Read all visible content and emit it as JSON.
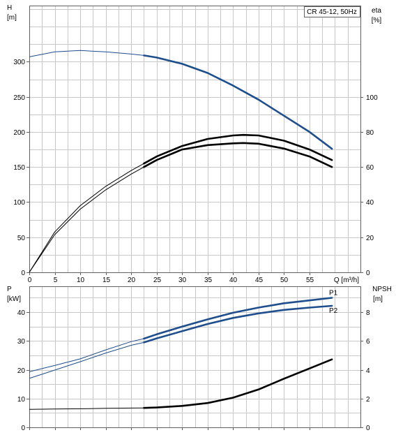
{
  "chart_data": [
    {
      "type": "line",
      "legend_box": "CR 45-12, 50Hz",
      "y_left": {
        "label_name": "H",
        "label_unit": "[m]",
        "lim": [
          0,
          380
        ],
        "ticks": [
          0,
          50,
          100,
          150,
          200,
          250,
          300
        ]
      },
      "y_right": {
        "label_name": "eta",
        "label_unit": "[%]",
        "lim": [
          0,
          152
        ],
        "ticks": [
          0,
          20,
          40,
          60,
          80,
          100
        ]
      },
      "x": {
        "label": "Q [m³/h]",
        "lim": [
          0,
          65
        ],
        "ticks": [
          0,
          5,
          10,
          15,
          20,
          25,
          30,
          35,
          40,
          45,
          50,
          55
        ]
      },
      "grid": true,
      "series": [
        {
          "axis": "left",
          "color": "#1f4e8c",
          "x": [
            0,
            5,
            10,
            15,
            20,
            22.5,
            25,
            30,
            35,
            40,
            45,
            50,
            55,
            59.4
          ],
          "y": [
            307,
            314,
            316,
            314,
            311,
            309,
            306,
            297,
            284,
            266,
            246,
            223,
            200,
            176
          ]
        },
        {
          "axis": "right",
          "color": "#000000",
          "x": [
            0,
            5,
            10,
            15,
            20,
            22.5,
            25,
            30,
            35,
            40,
            42,
            45,
            50,
            55,
            59.4
          ],
          "y": [
            0,
            23,
            38,
            49,
            58,
            62,
            66,
            72,
            76,
            78,
            78.3,
            78,
            75,
            70,
            64
          ]
        },
        {
          "axis": "right",
          "color": "#000000",
          "x": [
            0,
            5,
            10,
            15,
            20,
            22.5,
            25,
            30,
            35,
            40,
            42,
            45,
            50,
            55,
            59.4
          ],
          "y": [
            0,
            21.5,
            36,
            47,
            56,
            60,
            64,
            70,
            72.5,
            73.5,
            73.7,
            73.3,
            70.5,
            66,
            60
          ]
        }
      ]
    },
    {
      "type": "line",
      "y_left": {
        "label_name": "P",
        "label_unit": "[kW]",
        "lim": [
          0,
          49
        ],
        "ticks": [
          0,
          10,
          20,
          30,
          40
        ]
      },
      "y_right": {
        "label_name": "NPSH",
        "label_unit": "[m]",
        "lim": [
          0,
          9.8
        ],
        "ticks": [
          0,
          2,
          4,
          6,
          8
        ]
      },
      "x": {
        "lim": [
          0,
          65
        ]
      },
      "grid": true,
      "series": [
        {
          "name": "P1",
          "axis": "left",
          "color": "#1f4e8c",
          "x": [
            0,
            5,
            10,
            15,
            20,
            22.5,
            25,
            30,
            35,
            40,
            45,
            50,
            55,
            59.4
          ],
          "y": [
            19.3,
            21.5,
            23.8,
            26.9,
            29.8,
            30.8,
            32.3,
            35.0,
            37.5,
            39.8,
            41.6,
            43.1,
            44.1,
            45.0
          ]
        },
        {
          "name": "P2",
          "axis": "left",
          "color": "#1f4e8c",
          "x": [
            0,
            5,
            10,
            15,
            20,
            22.5,
            25,
            30,
            35,
            40,
            45,
            50,
            55,
            59.4
          ],
          "y": [
            17.0,
            19.9,
            22.8,
            25.8,
            28.5,
            29.5,
            30.9,
            33.4,
            35.9,
            38.0,
            39.6,
            40.8,
            41.6,
            42.2
          ]
        },
        {
          "axis": "right",
          "color": "#000000",
          "x": [
            0,
            5,
            10,
            15,
            20,
            22.5,
            25,
            30,
            35,
            40,
            45,
            50,
            55,
            59.4
          ],
          "y": [
            1.25,
            1.27,
            1.29,
            1.32,
            1.34,
            1.35,
            1.38,
            1.49,
            1.69,
            2.06,
            2.63,
            3.38,
            4.09,
            4.72
          ]
        }
      ]
    }
  ]
}
